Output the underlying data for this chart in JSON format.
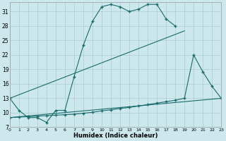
{
  "bg_color": "#cce8ec",
  "grid_color": "#aacdd0",
  "line_color": "#1a6b6b",
  "xlabel": "Humidex (Indice chaleur)",
  "xlim": [
    0,
    23
  ],
  "ylim": [
    7,
    33
  ],
  "xticks": [
    0,
    1,
    2,
    3,
    4,
    5,
    6,
    7,
    8,
    9,
    10,
    11,
    12,
    13,
    14,
    15,
    16,
    17,
    18,
    19,
    20,
    21,
    22,
    23
  ],
  "yticks": [
    7,
    10,
    13,
    16,
    19,
    22,
    25,
    28,
    31
  ],
  "curve1_x": [
    0,
    1,
    2,
    3,
    4,
    5,
    6,
    7,
    8,
    9,
    10,
    11,
    12,
    13,
    14,
    15,
    16,
    17,
    18
  ],
  "curve1_y": [
    13,
    10.5,
    9,
    9,
    8,
    10.5,
    10.5,
    17.5,
    24,
    29,
    32,
    32.5,
    32,
    31,
    31.5,
    32.5,
    32.5,
    29.5,
    28
  ],
  "curve2_x": [
    0,
    19
  ],
  "curve2_y": [
    13,
    27
  ],
  "curve3_x": [
    0,
    1,
    2,
    3,
    4,
    5,
    6,
    7,
    8,
    9,
    10,
    11,
    12,
    13,
    14,
    15,
    16,
    17,
    18,
    19,
    20,
    21,
    22,
    23
  ],
  "curve3_y": [
    9,
    9.1,
    9.2,
    9.3,
    9.4,
    9.5,
    9.6,
    9.7,
    9.9,
    10.1,
    10.4,
    10.6,
    10.9,
    11.1,
    11.4,
    11.7,
    12.0,
    12.3,
    12.6,
    13.0,
    22.0,
    18.5,
    15.5,
    13.0
  ],
  "curve4_x": [
    0,
    23
  ],
  "curve4_y": [
    9,
    13
  ]
}
